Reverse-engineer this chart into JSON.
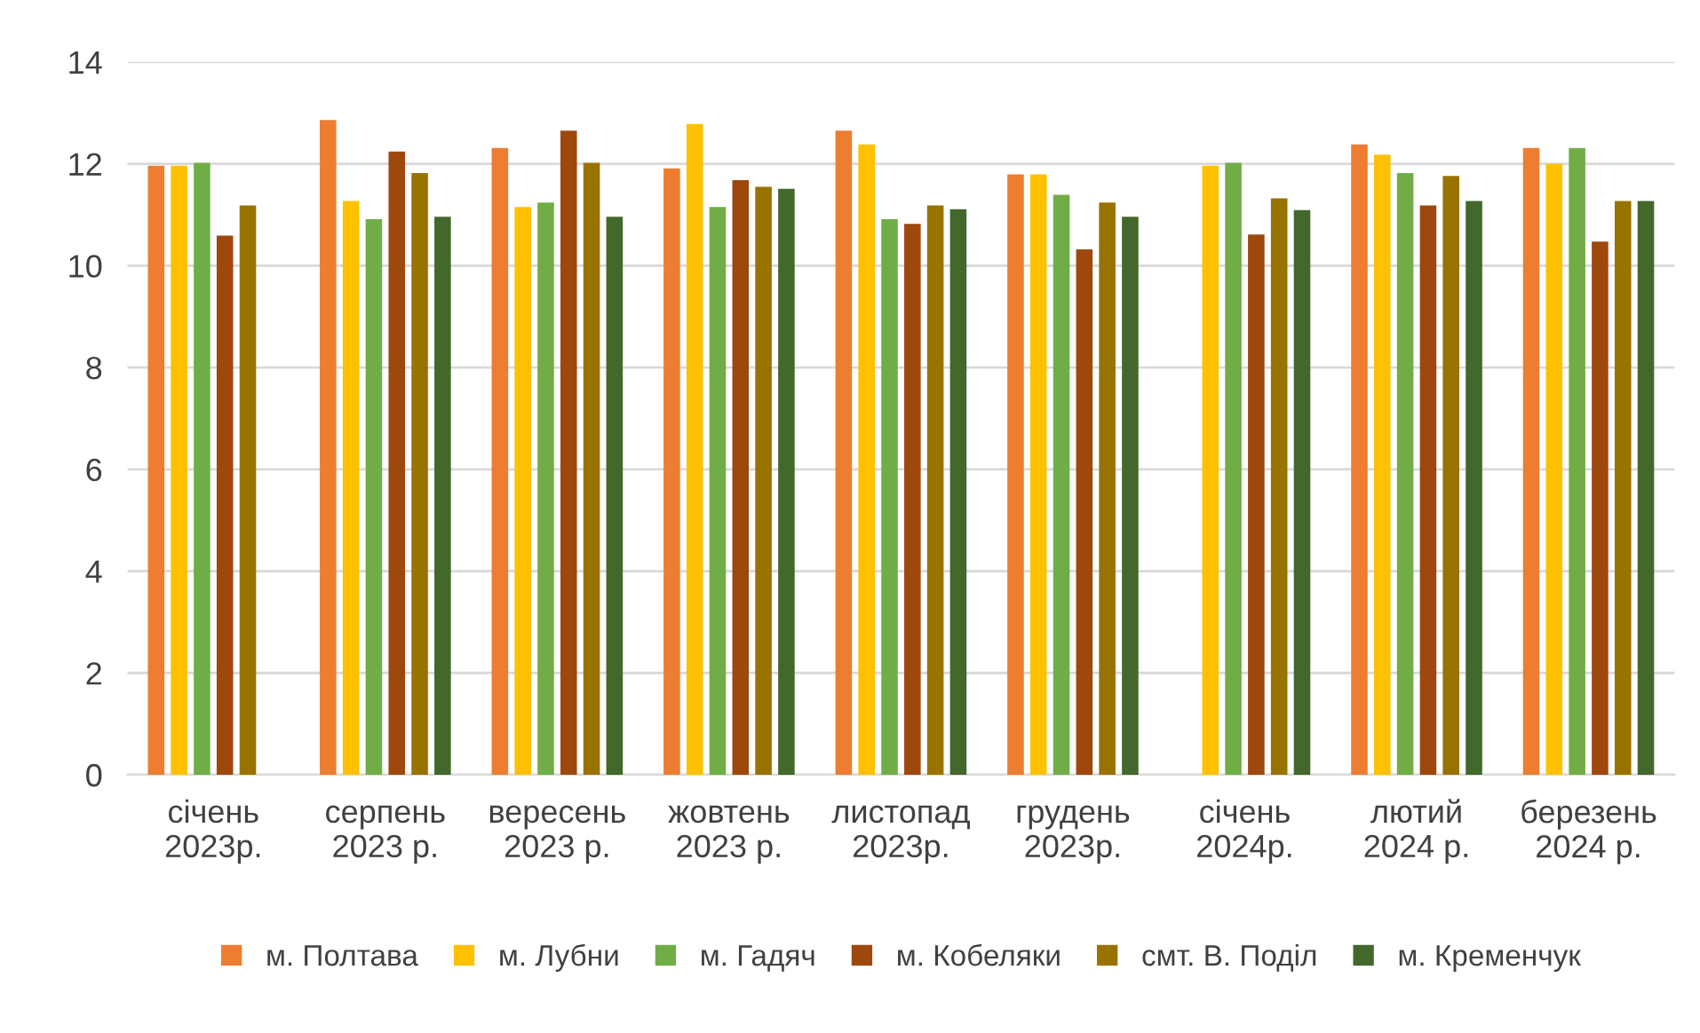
{
  "chart_data": {
    "type": "bar",
    "categories": [
      "січень\n2023р.",
      "серпень\n2023 р.",
      "вересень\n2023 р.",
      "жовтень\n2023 р.",
      "листопад\n2023р.",
      "грудень\n2023р.",
      "січень\n2024р.",
      "лютий\n2024 р.",
      "березень\n2024 р."
    ],
    "series": [
      {
        "name": "м. Полтава",
        "color": "#ed7d31",
        "values": [
          11.96,
          12.86,
          12.31,
          11.91,
          12.65,
          11.79,
          null,
          12.38,
          12.31
        ]
      },
      {
        "name": "м. Лубни",
        "color": "#ffc000",
        "values": [
          11.96,
          11.27,
          11.15,
          12.78,
          12.38,
          11.79,
          11.96,
          12.18,
          12.0
        ]
      },
      {
        "name": "м. Гадяч",
        "color": "#70ad47",
        "values": [
          12.02,
          10.91,
          11.24,
          11.15,
          10.91,
          11.39,
          12.02,
          11.82,
          12.31
        ]
      },
      {
        "name": "м. Кобеляки",
        "color": "#9e480e",
        "values": [
          10.59,
          12.24,
          12.65,
          11.68,
          10.82,
          10.32,
          10.61,
          11.18,
          10.47
        ]
      },
      {
        "name": "смт. В. Поділ",
        "color": "#997300",
        "values": [
          11.18,
          11.82,
          12.02,
          11.55,
          11.18,
          11.24,
          11.32,
          11.76,
          11.27
        ]
      },
      {
        "name": "м. Кременчук",
        "color": "#43682b",
        "values": [
          null,
          10.96,
          10.96,
          11.51,
          11.11,
          10.96,
          11.09,
          11.27,
          11.27
        ]
      }
    ],
    "ylim": [
      0,
      14
    ],
    "yticks": [
      0,
      2,
      4,
      6,
      8,
      10,
      12,
      14
    ],
    "grid": "y",
    "legend": "bottom"
  }
}
